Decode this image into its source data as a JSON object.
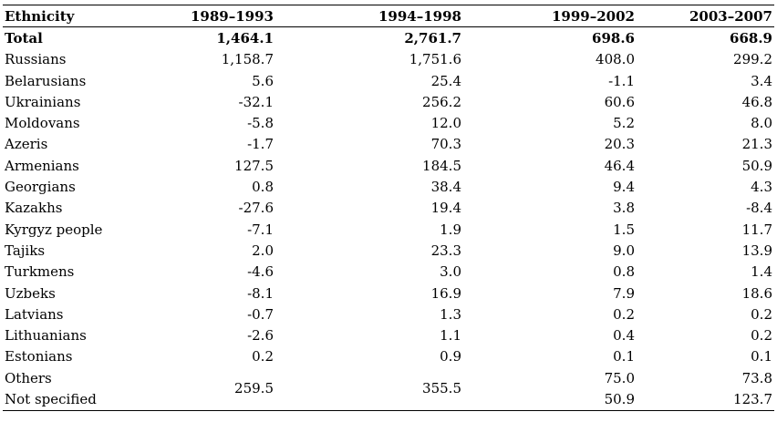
{
  "table": {
    "headers": [
      "Ethnicity",
      "1989–1993",
      "1994–1998",
      "1999–2002",
      "2003–2007"
    ],
    "rows": [
      {
        "label": "Total",
        "values": [
          "1,464.1",
          "2,761.7",
          "698.6",
          "668.9"
        ]
      },
      {
        "label": "Russians",
        "values": [
          "1,158.7",
          "1,751.6",
          "408.0",
          "299.2"
        ]
      },
      {
        "label": "Belarusians",
        "values": [
          "5.6",
          "25.4",
          "-1.1",
          "3.4"
        ]
      },
      {
        "label": "Ukrainians",
        "values": [
          "-32.1",
          "256.2",
          "60.6",
          "46.8"
        ]
      },
      {
        "label": "Moldovans",
        "values": [
          "-5.8",
          "12.0",
          "5.2",
          "8.0"
        ]
      },
      {
        "label": "Azeris",
        "values": [
          "-1.7",
          "70.3",
          "20.3",
          "21.3"
        ]
      },
      {
        "label": "Armenians",
        "values": [
          "127.5",
          "184.5",
          "46.4",
          "50.9"
        ]
      },
      {
        "label": "Georgians",
        "values": [
          "0.8",
          "38.4",
          "9.4",
          "4.3"
        ]
      },
      {
        "label": "Kazakhs",
        "values": [
          "-27.6",
          "19.4",
          "3.8",
          "-8.4"
        ]
      },
      {
        "label": "Kyrgyz people",
        "values": [
          "-7.1",
          "1.9",
          "1.5",
          "11.7"
        ]
      },
      {
        "label": "Tajiks",
        "values": [
          "2.0",
          "23.3",
          "9.0",
          "13.9"
        ]
      },
      {
        "label": "Turkmens",
        "values": [
          "-4.6",
          "3.0",
          "0.8",
          "1.4"
        ]
      },
      {
        "label": "Uzbeks",
        "values": [
          "-8.1",
          "16.9",
          "7.9",
          "18.6"
        ]
      },
      {
        "label": "Latvians",
        "values": [
          "-0.7",
          "1.3",
          "0.2",
          "0.2"
        ]
      },
      {
        "label": "Lithuanians",
        "values": [
          "-2.6",
          "1.1",
          "0.4",
          "0.2"
        ]
      },
      {
        "label": "Estonians",
        "values": [
          "0.2",
          "0.9",
          "0.1",
          "0.1"
        ]
      }
    ],
    "others": {
      "labels": [
        "Others",
        "Not specified"
      ],
      "merged_1989_1993": "259.5",
      "merged_1994_1998": "355.5",
      "others_1999_2002": "75.0",
      "others_2003_2007": "73.8",
      "not_specified_1999_2002": "50.9",
      "not_specified_2003_2007": "123.7"
    }
  }
}
